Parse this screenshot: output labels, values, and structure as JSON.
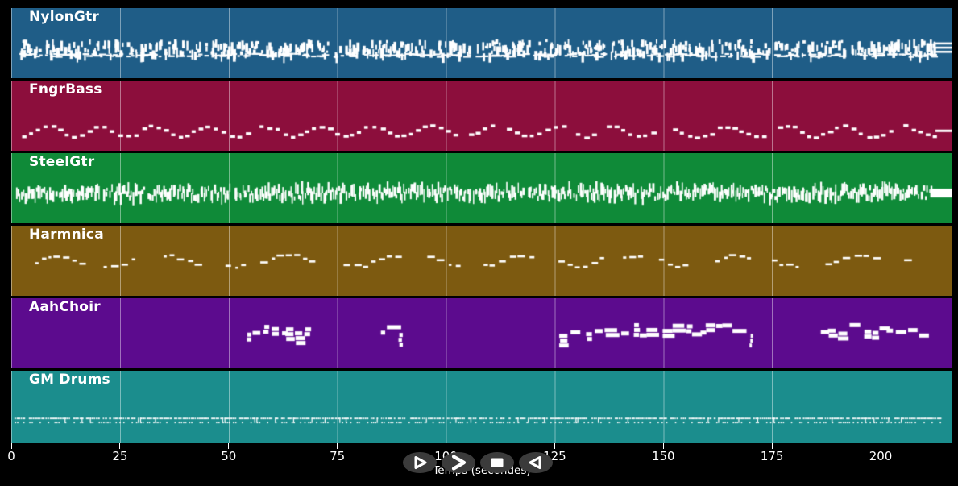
{
  "window": {
    "background": "#000000"
  },
  "chart_data": {
    "type": "midi-piano-roll",
    "xlabel": "Temps (secondes)",
    "x_ticks": [
      0,
      25,
      50,
      75,
      100,
      125,
      150,
      175,
      200
    ],
    "x_range": [
      0,
      216.3
    ],
    "grid": "vertical lines every 25 s, light white over each track color",
    "note_color": "#ffffff",
    "grid_color": "rgba(255,255,255,0.42)",
    "tracks": [
      {
        "name": "NylonGtr",
        "color": "#1f5d87",
        "pattern": {
          "kind": "dense-chords",
          "seed": 101,
          "band_center": 0.57,
          "start_s": 2,
          "end_s": 212,
          "end_sustain_lines": 3,
          "description": "dense irregular clusters of short vertical note bars across whole timeline, 3 sustained lines at end"
        }
      },
      {
        "name": "FngrBass",
        "color": "#8c0e3c",
        "pattern": {
          "kind": "zigzag-dashes",
          "seed": 202,
          "band_center": 0.71,
          "start_s": 2.5,
          "end_s": 212.5,
          "end_dash": true,
          "description": "sparse small dashes alternating up/down in a zigzag walking-bass line across whole timeline"
        }
      },
      {
        "name": "SteelGtr",
        "color": "#0f8a38",
        "pattern": {
          "kind": "dense-ticks",
          "seed": 303,
          "band_center": 0.57,
          "start_s": 1,
          "end_s": 211.4,
          "end_block": true,
          "description": "nearly continuous dense band of thin vertical strumming ticks, thick solid block at end"
        }
      },
      {
        "name": "Harmnica",
        "color": "#7d5a10",
        "pattern": {
          "kind": "phrase-dashes",
          "seed": 404,
          "band_center": 0.49,
          "start_s": 5.5,
          "end_s": 205.5,
          "description": "wavy melodic phrases of 3-7 short dashes separated by rest gaps"
        }
      },
      {
        "name": "AahChoir",
        "color": "#5c0b8e",
        "pattern": {
          "kind": "chord-blocks",
          "seed": 505,
          "band_center": 0.5,
          "segments_s": [
            [
              54,
              69
            ],
            [
              85,
              89.5
            ],
            [
              126,
              170
            ],
            [
              186,
              211
            ]
          ],
          "description": "thick stacked chord blocks only inside four time segments, rest of track empty"
        }
      },
      {
        "name": "GM Drums",
        "color": "#1b8d8d",
        "pattern": {
          "kind": "drum-dots",
          "seed": 606,
          "band_center": 0.67,
          "start_s": 0.3,
          "end_s": 213.5,
          "description": "continuous double row of tiny percussion dots across whole timeline"
        }
      }
    ]
  },
  "controls": {
    "button_color": "#3b3b3b",
    "icon_color": "#ffffff",
    "buttons": [
      {
        "icon": "play-icon",
        "action": "play"
      },
      {
        "icon": "fast-forward-icon",
        "action": "forward"
      },
      {
        "icon": "stop-icon",
        "action": "stop"
      },
      {
        "icon": "rewind-icon",
        "action": "rewind"
      }
    ]
  }
}
